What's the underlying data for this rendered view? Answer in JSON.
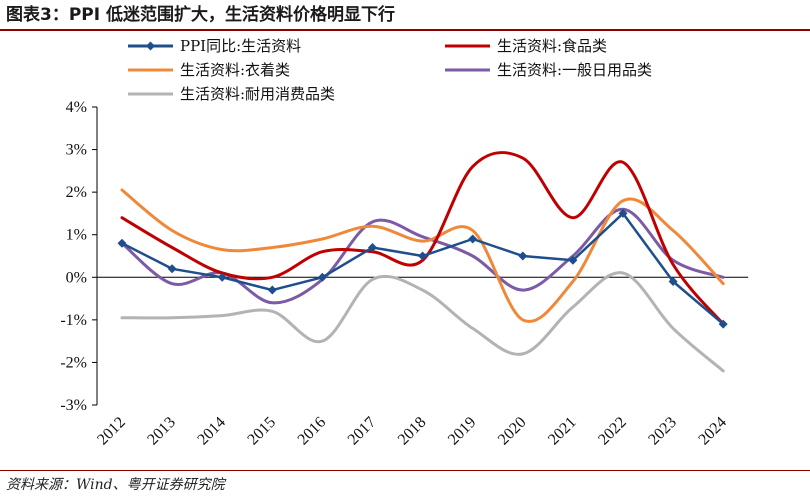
{
  "title": "图表3：PPI 低迷范围扩大，生活资料价格明显下行",
  "source": "资料来源：Wind、粤开证券研究院",
  "chart_data": {
    "type": "line",
    "title": "图表3：PPI 低迷范围扩大，生活资料价格明显下行",
    "xlabel": "",
    "ylabel": "",
    "ylim": [
      -3,
      4
    ],
    "ytick_labels": [
      "-3%",
      "-2%",
      "-1%",
      "0%",
      "1%",
      "2%",
      "3%",
      "4%"
    ],
    "x": [
      "2012",
      "2013",
      "2014",
      "2015",
      "2016",
      "2017",
      "2018",
      "2019",
      "2020",
      "2021",
      "2022",
      "2023",
      "2024"
    ],
    "legend_position": "top",
    "series": [
      {
        "name": "PPI同比:生活资料",
        "color": "#1f4e8c",
        "marker": "diamond",
        "values": [
          0.8,
          0.2,
          0.0,
          -0.3,
          0.0,
          0.7,
          0.5,
          0.9,
          0.5,
          0.4,
          1.5,
          -0.1,
          -1.1
        ]
      },
      {
        "name": "生活资料:食品类",
        "color": "#c00000",
        "marker": "none",
        "values": [
          1.4,
          0.7,
          0.1,
          0.0,
          0.6,
          0.6,
          0.4,
          2.6,
          2.8,
          1.4,
          2.7,
          0.3,
          -1.1
        ]
      },
      {
        "name": "生活资料:衣着类",
        "color": "#f0883a",
        "marker": "none",
        "values": [
          2.05,
          1.1,
          0.65,
          0.7,
          0.9,
          1.2,
          0.85,
          1.1,
          -1.0,
          -0.1,
          1.8,
          1.1,
          -0.15
        ]
      },
      {
        "name": "生活资料:一般日用品类",
        "color": "#7b5aa6",
        "marker": "none",
        "values": [
          0.8,
          -0.15,
          0.1,
          -0.6,
          -0.05,
          1.3,
          0.95,
          0.5,
          -0.3,
          0.5,
          1.6,
          0.4,
          0.0
        ]
      },
      {
        "name": "生活资料:耐用消费品类",
        "color": "#b3b3b3",
        "marker": "none",
        "values": [
          -0.95,
          -0.95,
          -0.9,
          -0.8,
          -1.5,
          -0.05,
          -0.3,
          -1.2,
          -1.8,
          -0.7,
          0.1,
          -1.2,
          -2.2
        ]
      }
    ]
  }
}
